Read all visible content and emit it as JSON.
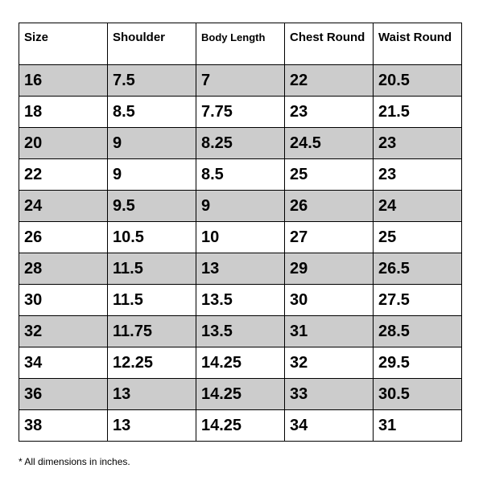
{
  "table": {
    "headers": [
      "Size",
      "Shoulder",
      "Body Length",
      "Chest Round",
      "Waist Round"
    ],
    "rows": [
      [
        "16",
        "7.5",
        "7",
        "22",
        "20.5"
      ],
      [
        "18",
        "8.5",
        "7.75",
        "23",
        "21.5"
      ],
      [
        "20",
        "9",
        "8.25",
        "24.5",
        "23"
      ],
      [
        "22",
        "9",
        "8.5",
        "25",
        "23"
      ],
      [
        "24",
        "9.5",
        "9",
        "26",
        "24"
      ],
      [
        "26",
        "10.5",
        "10",
        "27",
        "25"
      ],
      [
        "28",
        "11.5",
        "13",
        "29",
        "26.5"
      ],
      [
        "30",
        "11.5",
        "13.5",
        "30",
        "27.5"
      ],
      [
        "32",
        "11.75",
        "13.5",
        "31",
        "28.5"
      ],
      [
        "34",
        "12.25",
        "14.25",
        "32",
        "29.5"
      ],
      [
        "36",
        "13",
        "14.25",
        "33",
        "30.5"
      ],
      [
        "38",
        "13",
        "14.25",
        "34",
        "31"
      ]
    ],
    "shaded_row_color": "#cccccc"
  },
  "footnote": "* All dimensions in inches."
}
